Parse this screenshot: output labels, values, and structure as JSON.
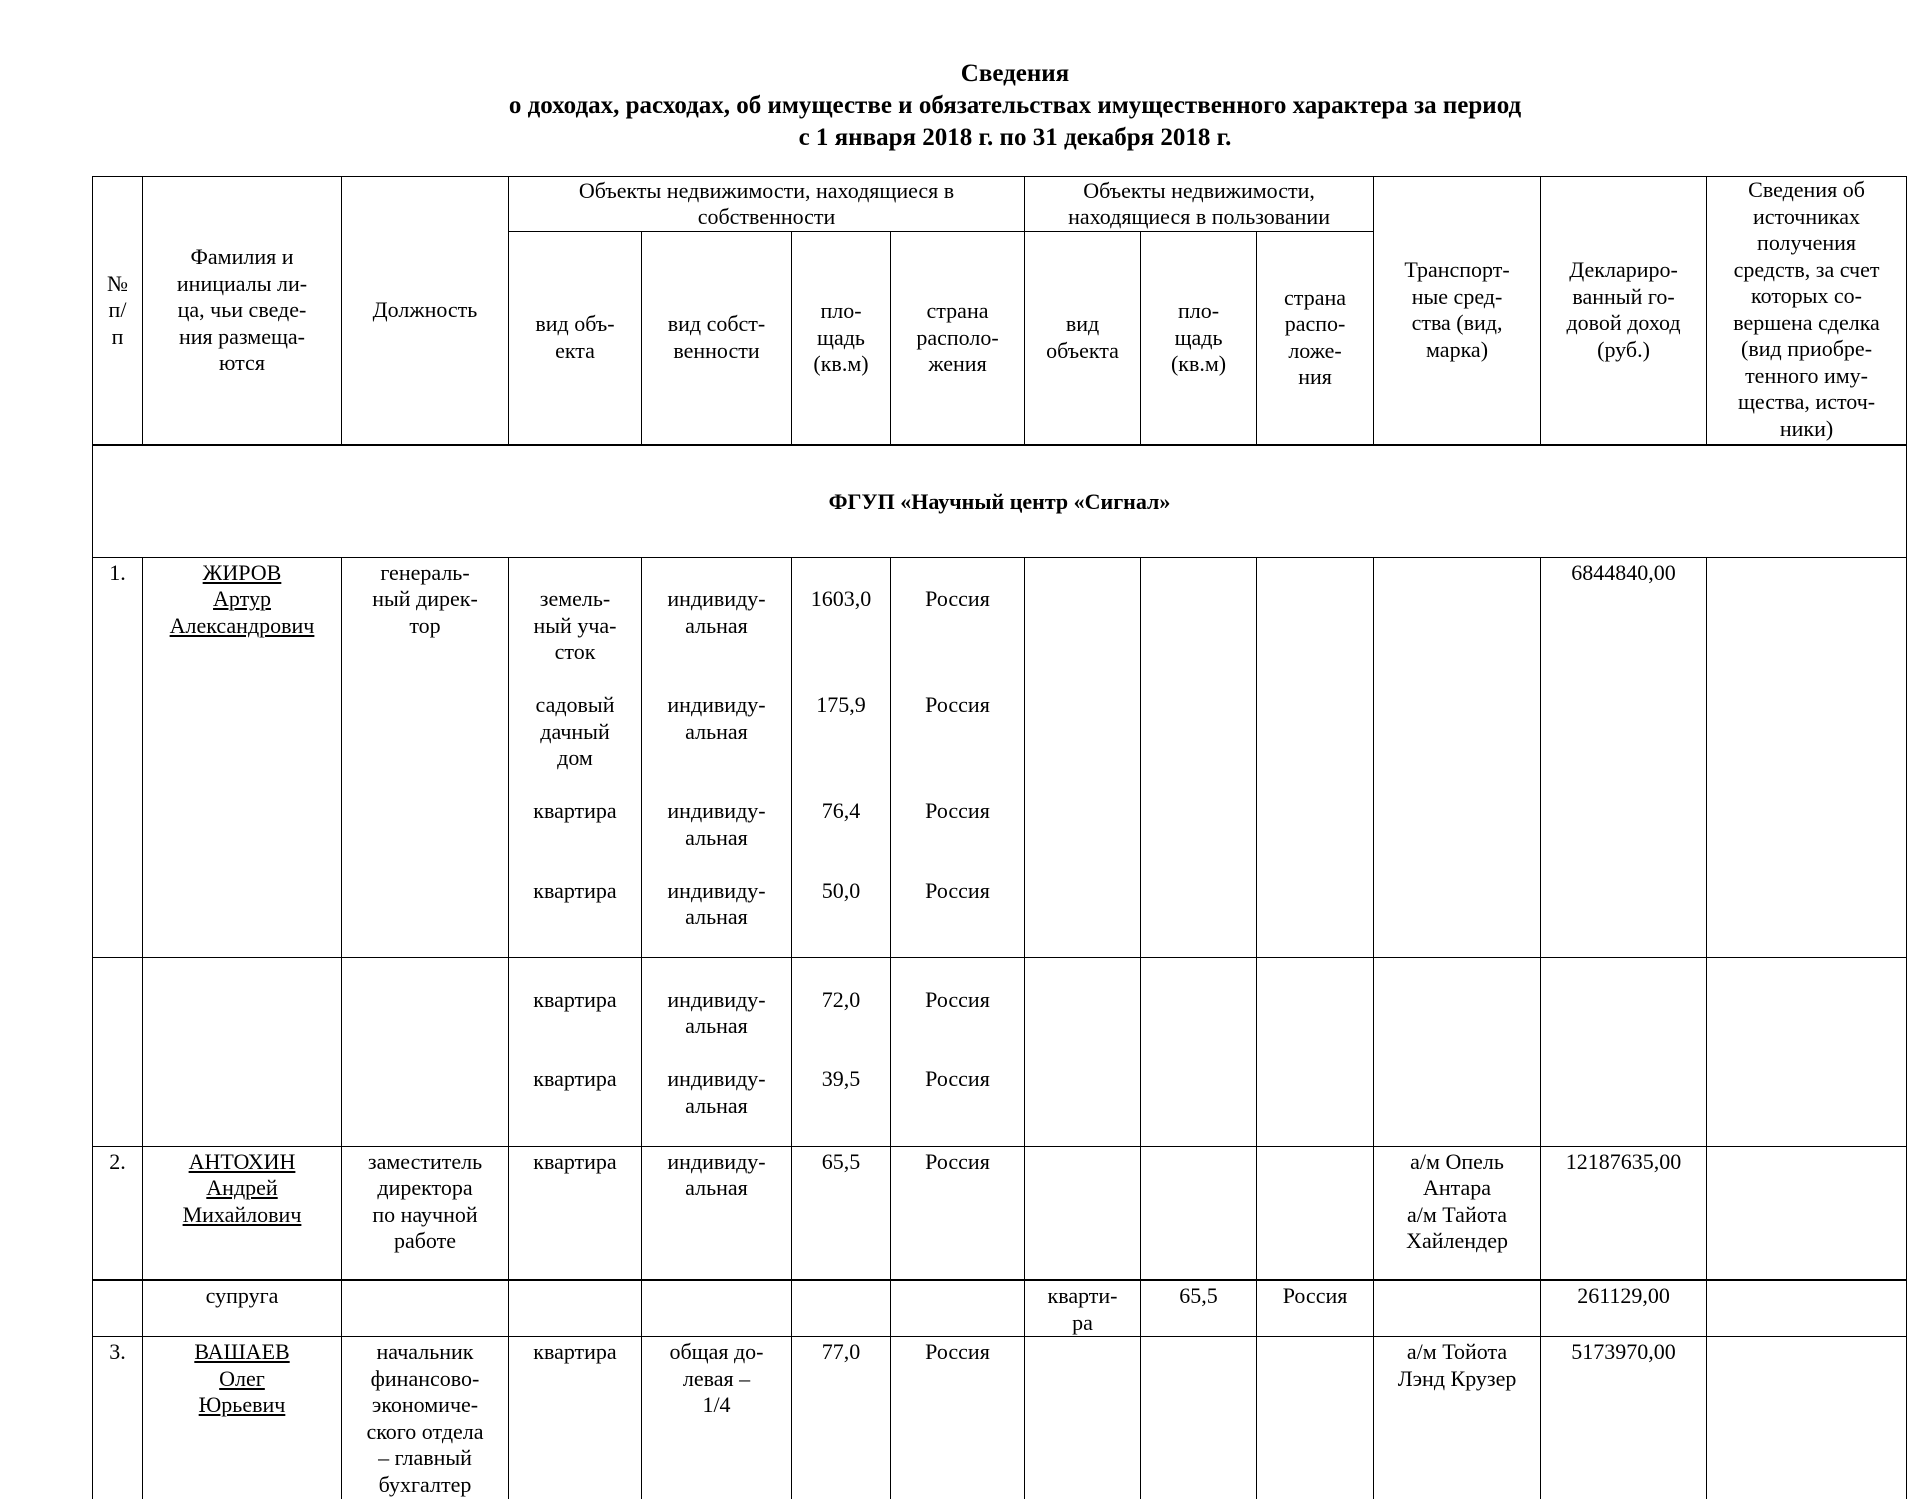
{
  "title": {
    "line1": "Сведения",
    "line2": "о доходах, расходах, об имуществе и обязательствах имущественного характера за период",
    "line3": "с 1 января 2018 г. по 31 декабря 2018 г."
  },
  "headers": {
    "num": "№\nп/\nп",
    "name": "Фамилия и\nинициалы ли-\nца, чьи сведе-\nния размеща-\nются",
    "position": "Должность",
    "owned_group": "Объекты недвижимости, находящиеся в\nсобственности",
    "used_group": "Объекты недвижимости,\nнаходящиеся в пользовании",
    "owned_type": "вид объ-\nекта",
    "owned_ownership": "вид собст-\nвенности",
    "owned_area": "пло-\nщадь\n(кв.м)",
    "owned_country": "страна\nрасполо-\nжения",
    "used_type": "вид\nобъекта",
    "used_area": "пло-\nщадь\n(кв.м)",
    "used_country": "страна\nраспо-\nложе-\nния",
    "vehicles": "Транспорт-\nные сред-\nства (вид,\nмарка)",
    "income": "Деклариро-\nванный го-\nдовой доход\n(руб.)",
    "sources": "Сведения об\nисточниках\nполучения\nсредств, за счет\nкоторых со-\nвершена сделка\n(вид приобре-\nтенного иму-\nщества, источ-\nники)"
  },
  "section": "ФГУП «Научный центр «Сигнал»",
  "rows": [
    {
      "num": "1.",
      "name": "ЖИРОВ\nАртур\nАлександрович",
      "position": "генераль-\nный дирек-\nтор",
      "owned": [
        {
          "type": "земель-\nный уча-\nсток",
          "ownership": "индивиду-\nальная",
          "area": "1603,0",
          "country": "Россия"
        },
        {
          "type": "садовый\nдачный\nдом",
          "ownership": "индивиду-\nальная",
          "area": "175,9",
          "country": "Россия"
        },
        {
          "type": "квартира",
          "ownership": "индивиду-\nальная",
          "area": "76,4",
          "country": "Россия"
        },
        {
          "type": "квартира",
          "ownership": "индивиду-\nальная",
          "area": "50,0",
          "country": "Россия"
        },
        {
          "type": "квартира",
          "ownership": "индивиду-\nальная",
          "area": "72,0",
          "country": "Россия"
        },
        {
          "type": "квартира",
          "ownership": "индивиду-\nальная",
          "area": "39,5",
          "country": "Россия"
        }
      ],
      "income": "6844840,00"
    },
    {
      "num": "2.",
      "name": "АНТОХИН\nАндрей\nМихайлович",
      "position": "заместитель\nдиректора\nпо научной\nработе",
      "owned": [
        {
          "type": "квартира",
          "ownership": "индивиду-\nальная",
          "area": "65,5",
          "country": "Россия"
        }
      ],
      "vehicles": "а/м Опель\nАнтара\nа/м Тайота\nХайлендер",
      "income": "12187635,00"
    },
    {
      "name": "супруга",
      "used": {
        "type": "кварти-\nра",
        "area": "65,5",
        "country": "Россия"
      },
      "income": "261129,00"
    },
    {
      "num": "3.",
      "name": "ВАШАЕВ\nОлег\nЮрьевич",
      "position": "начальник\nфинансово-\nэкономиче-\nского отдела\n– главный\nбухгалтер",
      "owned": [
        {
          "type": "квартира",
          "ownership": "общая до-\nлевая –\n1/4",
          "area": "77,0",
          "country": "Россия"
        }
      ],
      "vehicles": "а/м Тойота\nЛэнд Крузер",
      "income": "5173970,00"
    }
  ]
}
